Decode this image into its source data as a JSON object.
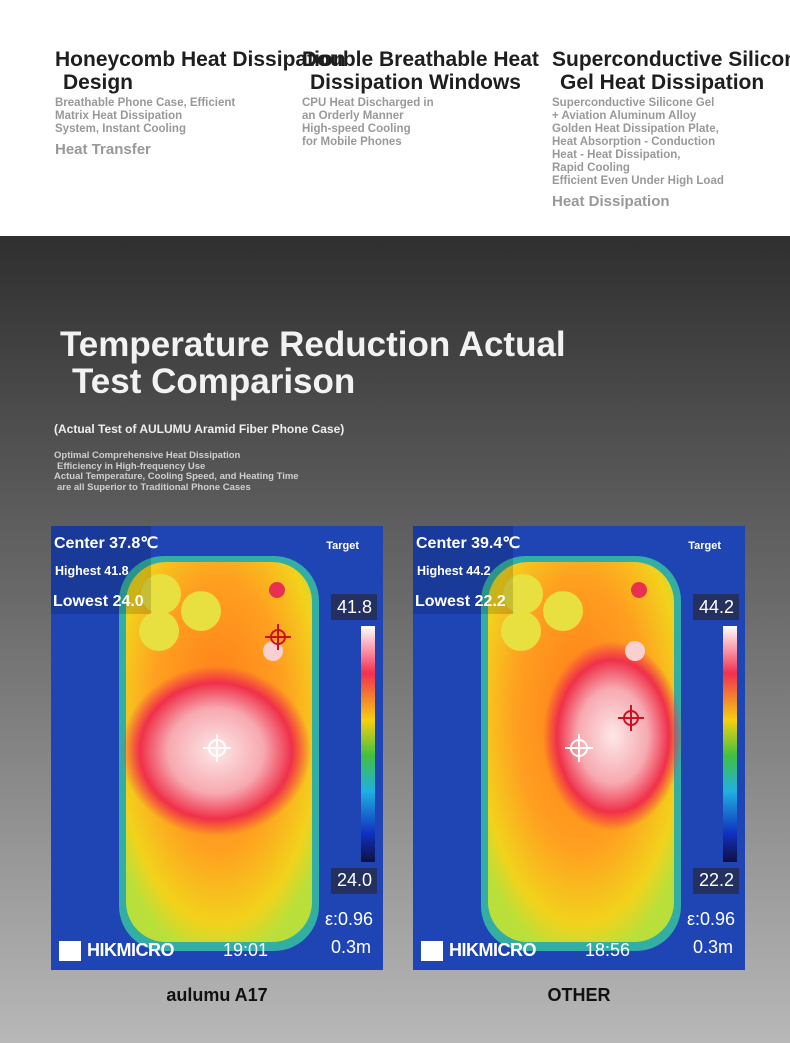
{
  "features": [
    {
      "title": [
        "Honeycomb Heat Dissipation",
        "Design"
      ],
      "desc": [
        "Breathable Phone Case, Efficient",
        "Matrix Heat Dissipation",
        "System, Instant Cooling"
      ],
      "footer": "Heat Transfer"
    },
    {
      "title": [
        "Double Breathable Heat",
        "Dissipation Windows"
      ],
      "desc": [
        "CPU Heat Discharged in",
        "an Orderly Manner",
        "High-speed Cooling",
        "for Mobile Phones"
      ]
    },
    {
      "title": [
        "Superconductive Silicone",
        "Gel Heat Dissipation"
      ],
      "desc": [
        "Superconductive Silicone Gel",
        "+ Aviation Aluminum Alloy",
        "Golden Heat Dissipation Plate,",
        "Heat Absorption - Conduction",
        "Heat - Heat Dissipation,",
        "Rapid Cooling",
        "Efficient Even Under High Load"
      ],
      "footer": "Heat Dissipation"
    }
  ],
  "header": {
    "title": [
      "Temperature Reduction Actual",
      "Test Comparison"
    ],
    "subtitle": "(Actual Test of AULUMU Aramid Fiber Phone Case)",
    "notes": [
      "Optimal Comprehensive Heat Dissipation",
      "Efficiency in High-frequency Use",
      "Actual Temperature, Cooling Speed, and Heating Time",
      "are all Superior to Traditional Phone Cases"
    ]
  },
  "panels": [
    {
      "center": "Center 37.8℃",
      "highest": "Highest 41.8",
      "lowest": "Lowest 24.0",
      "scale_max": "41.8",
      "scale_min": "24.0",
      "emissivity": "ε:0.96",
      "distance": "0.3m",
      "brand": "HIKMICRO",
      "time": "19:01",
      "target": "Target",
      "caption": "aulumu A17"
    },
    {
      "center": "Center 39.4℃",
      "highest": "Highest 44.2",
      "lowest": "Lowest 22.2",
      "scale_max": "44.2",
      "scale_min": "22.2",
      "emissivity": "ε:0.96",
      "distance": "0.3m",
      "brand": "HIKMICRO",
      "time": "18:56",
      "target": "Target",
      "caption": "OTHER"
    }
  ]
}
